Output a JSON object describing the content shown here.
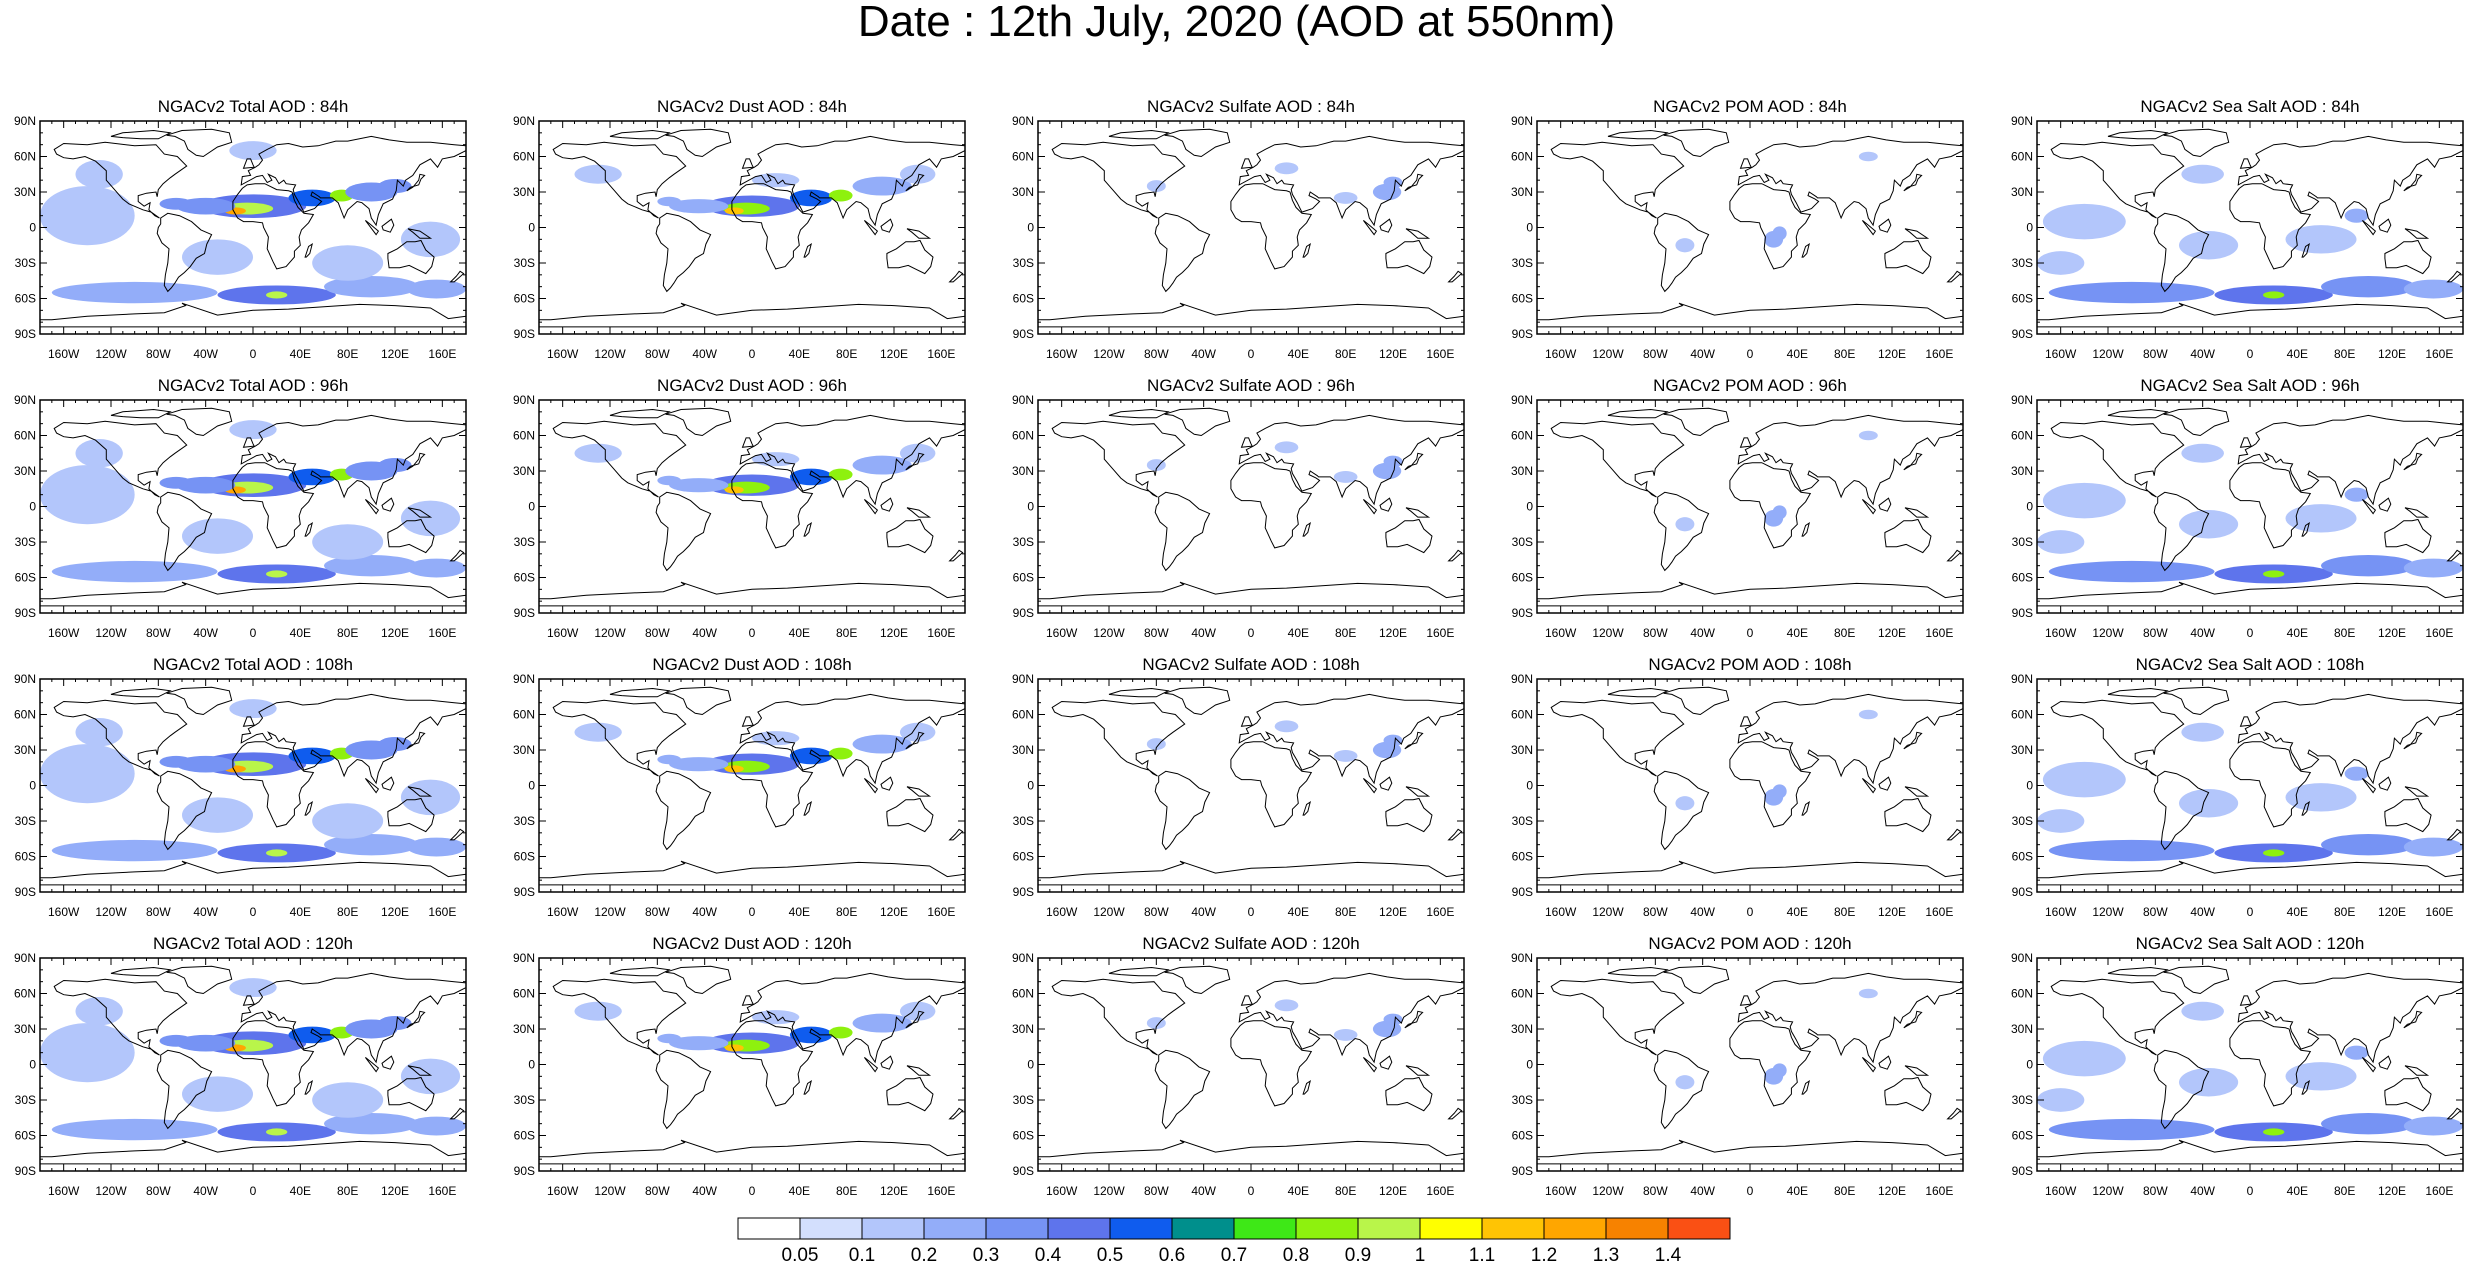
{
  "title": "Date : 12th July, 2020 (AOD at 550nm)",
  "lat_ticks": [
    "90N",
    "60N",
    "30N",
    "0",
    "30S",
    "60S",
    "90S"
  ],
  "lon_ticks": [
    "160W",
    "120W",
    "80W",
    "40W",
    "0",
    "40E",
    "80E",
    "120E",
    "160E"
  ],
  "panels": [
    {
      "title": "NGACv2 Total AOD : 84h",
      "species": "total"
    },
    {
      "title": "NGACv2 Dust AOD : 84h",
      "species": "dust"
    },
    {
      "title": "NGACv2 Sulfate AOD : 84h",
      "species": "sulfate"
    },
    {
      "title": "NGACv2 POM AOD : 84h",
      "species": "pom"
    },
    {
      "title": "NGACv2 Sea Salt AOD : 84h",
      "species": "seasalt"
    },
    {
      "title": "NGACv2 Total AOD : 96h",
      "species": "total"
    },
    {
      "title": "NGACv2 Dust AOD : 96h",
      "species": "dust"
    },
    {
      "title": "NGACv2 Sulfate AOD : 96h",
      "species": "sulfate"
    },
    {
      "title": "NGACv2 POM AOD : 96h",
      "species": "pom"
    },
    {
      "title": "NGACv2 Sea Salt AOD : 96h",
      "species": "seasalt"
    },
    {
      "title": "NGACv2 Total AOD : 108h",
      "species": "total"
    },
    {
      "title": "NGACv2 Dust AOD : 108h",
      "species": "dust"
    },
    {
      "title": "NGACv2 Sulfate AOD : 108h",
      "species": "sulfate"
    },
    {
      "title": "NGACv2 POM AOD : 108h",
      "species": "pom"
    },
    {
      "title": "NGACv2 Sea Salt AOD : 108h",
      "species": "seasalt"
    },
    {
      "title": "NGACv2 Total AOD : 120h",
      "species": "total"
    },
    {
      "title": "NGACv2 Dust AOD : 120h",
      "species": "dust"
    },
    {
      "title": "NGACv2 Sulfate AOD : 120h",
      "species": "sulfate"
    },
    {
      "title": "NGACv2 POM AOD : 120h",
      "species": "pom"
    },
    {
      "title": "NGACv2 Sea Salt  AOD : 120h",
      "species": "seasalt"
    }
  ],
  "colorbar": {
    "colors": [
      "#ffffff",
      "#d3dffd",
      "#b3c6fb",
      "#93adf9",
      "#7693f4",
      "#5e74ec",
      "#0f5cee",
      "#008f8c",
      "#3ee817",
      "#8ef10e",
      "#b9f54a",
      "#ffff00",
      "#ffc404",
      "#ffa600",
      "#f78200",
      "#fa5014"
    ],
    "labels": [
      "0.05",
      "0.1",
      "0.2",
      "0.3",
      "0.4",
      "0.5",
      "0.6",
      "0.7",
      "0.8",
      "0.9",
      "1",
      "1.1",
      "1.2",
      "1.3",
      "1.4"
    ]
  }
}
